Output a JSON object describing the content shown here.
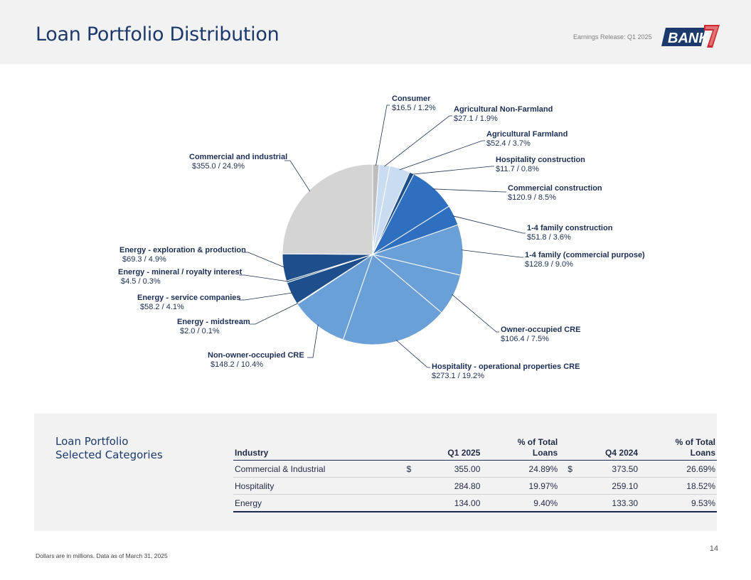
{
  "header": {
    "title": "Loan Portfolio Distribution",
    "release": "Earnings Release: Q1 2025",
    "logo_text": "BANK7"
  },
  "colors": {
    "header_bg": "#f2f2f2",
    "title": "#1b3a6b",
    "dark_blue": "#1f4e8c",
    "mid_blue": "#2e6fbf",
    "light_blue": "#6a9fd8",
    "pale_blue": "#c9dcf1",
    "gray": "#d4d4d4",
    "logo_red": "#d0282e"
  },
  "chart_data": {
    "type": "pie",
    "slices": [
      {
        "name": "Consumer",
        "amount": "$16.5",
        "percent": "1.2%",
        "sep": "  /  ",
        "value": 16.5,
        "color": "#bdbdbd"
      },
      {
        "name": "Agricultural Non-Farmland",
        "amount": "$27.1",
        "percent": "1.9%",
        "sep": " / ",
        "value": 27.1,
        "color": "#c9dcf1"
      },
      {
        "name": "Agricultural Farmland",
        "amount": "$52.4",
        "percent": "3.7%",
        "sep": "  /  ",
        "value": 52.4,
        "color": "#c9dcf1"
      },
      {
        "name": "Hospitality construction",
        "amount": "$11.7",
        "percent": "0.8%",
        "sep": "  /  ",
        "value": 11.7,
        "color": "#1f4e8c"
      },
      {
        "name": "Commercial construction",
        "amount": "$120.9",
        "percent": "8.5%",
        "sep": "  /  ",
        "value": 120.9,
        "color": "#2e6fbf"
      },
      {
        "name": "1-4 family construction",
        "amount": "$51.8",
        "percent": "3.6%",
        "sep": "  /  ",
        "value": 51.8,
        "color": "#2e6fbf"
      },
      {
        "name": "1-4 family (commercial purpose)",
        "amount": "$128.9",
        "percent": "9.0%",
        "sep": "  /  ",
        "value": 128.9,
        "color": "#6a9fd8"
      },
      {
        "name": "Owner-occupied CRE",
        "amount": "$106.4",
        "percent": "7.5%",
        "sep": "  /  ",
        "value": 106.4,
        "color": "#6a9fd8"
      },
      {
        "name": "Hospitality - operational properties CRE",
        "amount": "$273.1",
        "percent": "19.2%",
        "sep": "  /  ",
        "value": 273.1,
        "color": "#6a9fd8"
      },
      {
        "name": "Non-owner-occupied CRE",
        "amount": "$148.2",
        "percent": "10.4%",
        "sep": "  /  ",
        "value": 148.2,
        "color": "#6a9fd8"
      },
      {
        "name": "Energy - midstream",
        "amount": "$2.0",
        "percent": "0.1%",
        "sep": " / ",
        "value": 2.0,
        "color": "#1f4e8c"
      },
      {
        "name": "Energy - service companies",
        "amount": "$58.2",
        "percent": "4.1%",
        "sep": "  /  ",
        "value": 58.2,
        "color": "#1f4e8c"
      },
      {
        "name": "Energy - mineral / royalty interest",
        "amount": "$4.5",
        "percent": "0.3%",
        "sep": " / ",
        "value": 4.5,
        "color": "#1f4e8c"
      },
      {
        "name": "Energy - exploration & production",
        "amount": "$69.3",
        "percent": "4.9%",
        "sep": "  /  ",
        "value": 69.3,
        "color": "#1f4e8c"
      },
      {
        "name": "Commercial and industrial",
        "amount": "$355.0",
        "percent": "24.9%",
        "sep": "  /  ",
        "value": 355.0,
        "color": "#d4d4d4"
      }
    ]
  },
  "table": {
    "panel_title_line1": "Loan Portfolio",
    "panel_title_line2": "Selected Categories",
    "headers": {
      "industry": "Industry",
      "q1": "Q1 2025",
      "pct1_line1": "% of Total",
      "pct1_line2": "Loans",
      "q4": "Q4 2024",
      "pct2_line1": "% of Total",
      "pct2_line2": "Loans"
    },
    "rows": [
      {
        "industry": "Commercial & Industrial",
        "cur1": "$",
        "q1": "355.00",
        "pct1": "24.89%",
        "cur2": "$",
        "q4": "373.50",
        "pct2": "26.69%"
      },
      {
        "industry": "Hospitality",
        "cur1": "",
        "q1": "284.80",
        "pct1": "19.97%",
        "cur2": "",
        "q4": "259.10",
        "pct2": "18.52%"
      },
      {
        "industry": "Energy",
        "cur1": "",
        "q1": "134.00",
        "pct1": "9.40%",
        "cur2": "",
        "q4": "133.30",
        "pct2": "9.53%"
      }
    ]
  },
  "footer": {
    "note": "Dollars are in millions. Data as of March 31, 2025",
    "page": "14"
  }
}
